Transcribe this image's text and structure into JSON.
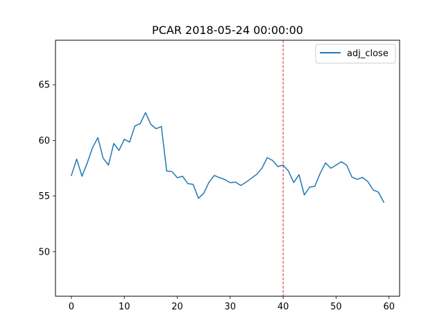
{
  "chart_data": {
    "type": "line",
    "title": "PCAR 2018-05-24 00:00:00",
    "xlabel": "",
    "ylabel": "",
    "xlim": [
      -3,
      62
    ],
    "ylim": [
      46,
      69
    ],
    "xticks": [
      0,
      10,
      20,
      30,
      40,
      50,
      60
    ],
    "yticks": [
      50,
      55,
      60,
      65
    ],
    "grid": false,
    "legend_position": "top-right",
    "vline": {
      "x": 40,
      "color": "#d62728",
      "style": "dashed"
    },
    "series": [
      {
        "name": "adj_close",
        "color": "#1f77b4",
        "x": [
          0,
          1,
          2,
          3,
          4,
          5,
          6,
          7,
          8,
          9,
          10,
          11,
          12,
          13,
          14,
          15,
          16,
          17,
          18,
          19,
          20,
          21,
          22,
          23,
          24,
          25,
          26,
          27,
          28,
          29,
          30,
          31,
          32,
          33,
          34,
          35,
          36,
          37,
          38,
          39,
          40,
          41,
          42,
          43,
          44,
          45,
          46,
          47,
          48,
          49,
          50,
          51,
          52,
          53,
          54,
          55,
          56,
          57,
          58,
          59
        ],
        "values": [
          56.85,
          58.32,
          56.78,
          57.98,
          59.35,
          60.25,
          58.4,
          57.78,
          59.72,
          59.1,
          60.1,
          59.85,
          61.3,
          61.5,
          62.5,
          61.45,
          61.05,
          61.25,
          57.25,
          57.2,
          56.65,
          56.78,
          56.12,
          56.05,
          54.8,
          55.25,
          56.25,
          56.85,
          56.65,
          56.48,
          56.2,
          56.25,
          55.95,
          56.25,
          56.6,
          56.95,
          57.5,
          58.45,
          58.2,
          57.65,
          57.78,
          57.25,
          56.22,
          56.92,
          55.1,
          55.8,
          55.88,
          57.05,
          57.98,
          57.5,
          57.78,
          58.08,
          57.78,
          56.7,
          56.5,
          56.68,
          56.3,
          55.55,
          55.35,
          54.45
        ]
      }
    ]
  }
}
